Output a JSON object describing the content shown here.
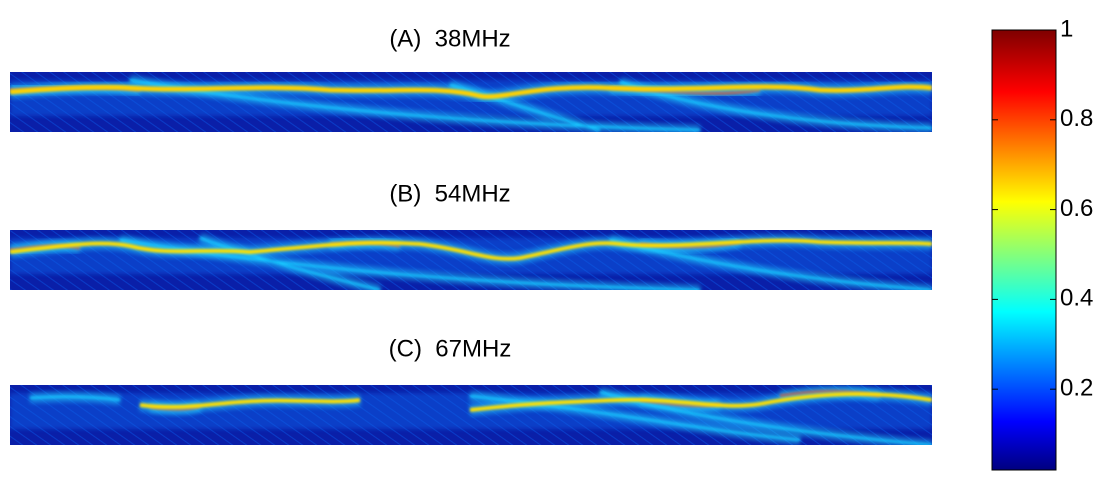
{
  "chart_data": [
    {
      "type": "heatmap",
      "title": "(A)  38MHz"
    },
    {
      "type": "heatmap",
      "title": "(B)  54MHz"
    },
    {
      "type": "heatmap",
      "title": "(C)  67MHz"
    },
    {
      "type": "colorbar",
      "ylim": [
        0.02,
        1
      ],
      "yticks": [
        0.2,
        0.4,
        0.6,
        0.8,
        1
      ]
    }
  ]
}
